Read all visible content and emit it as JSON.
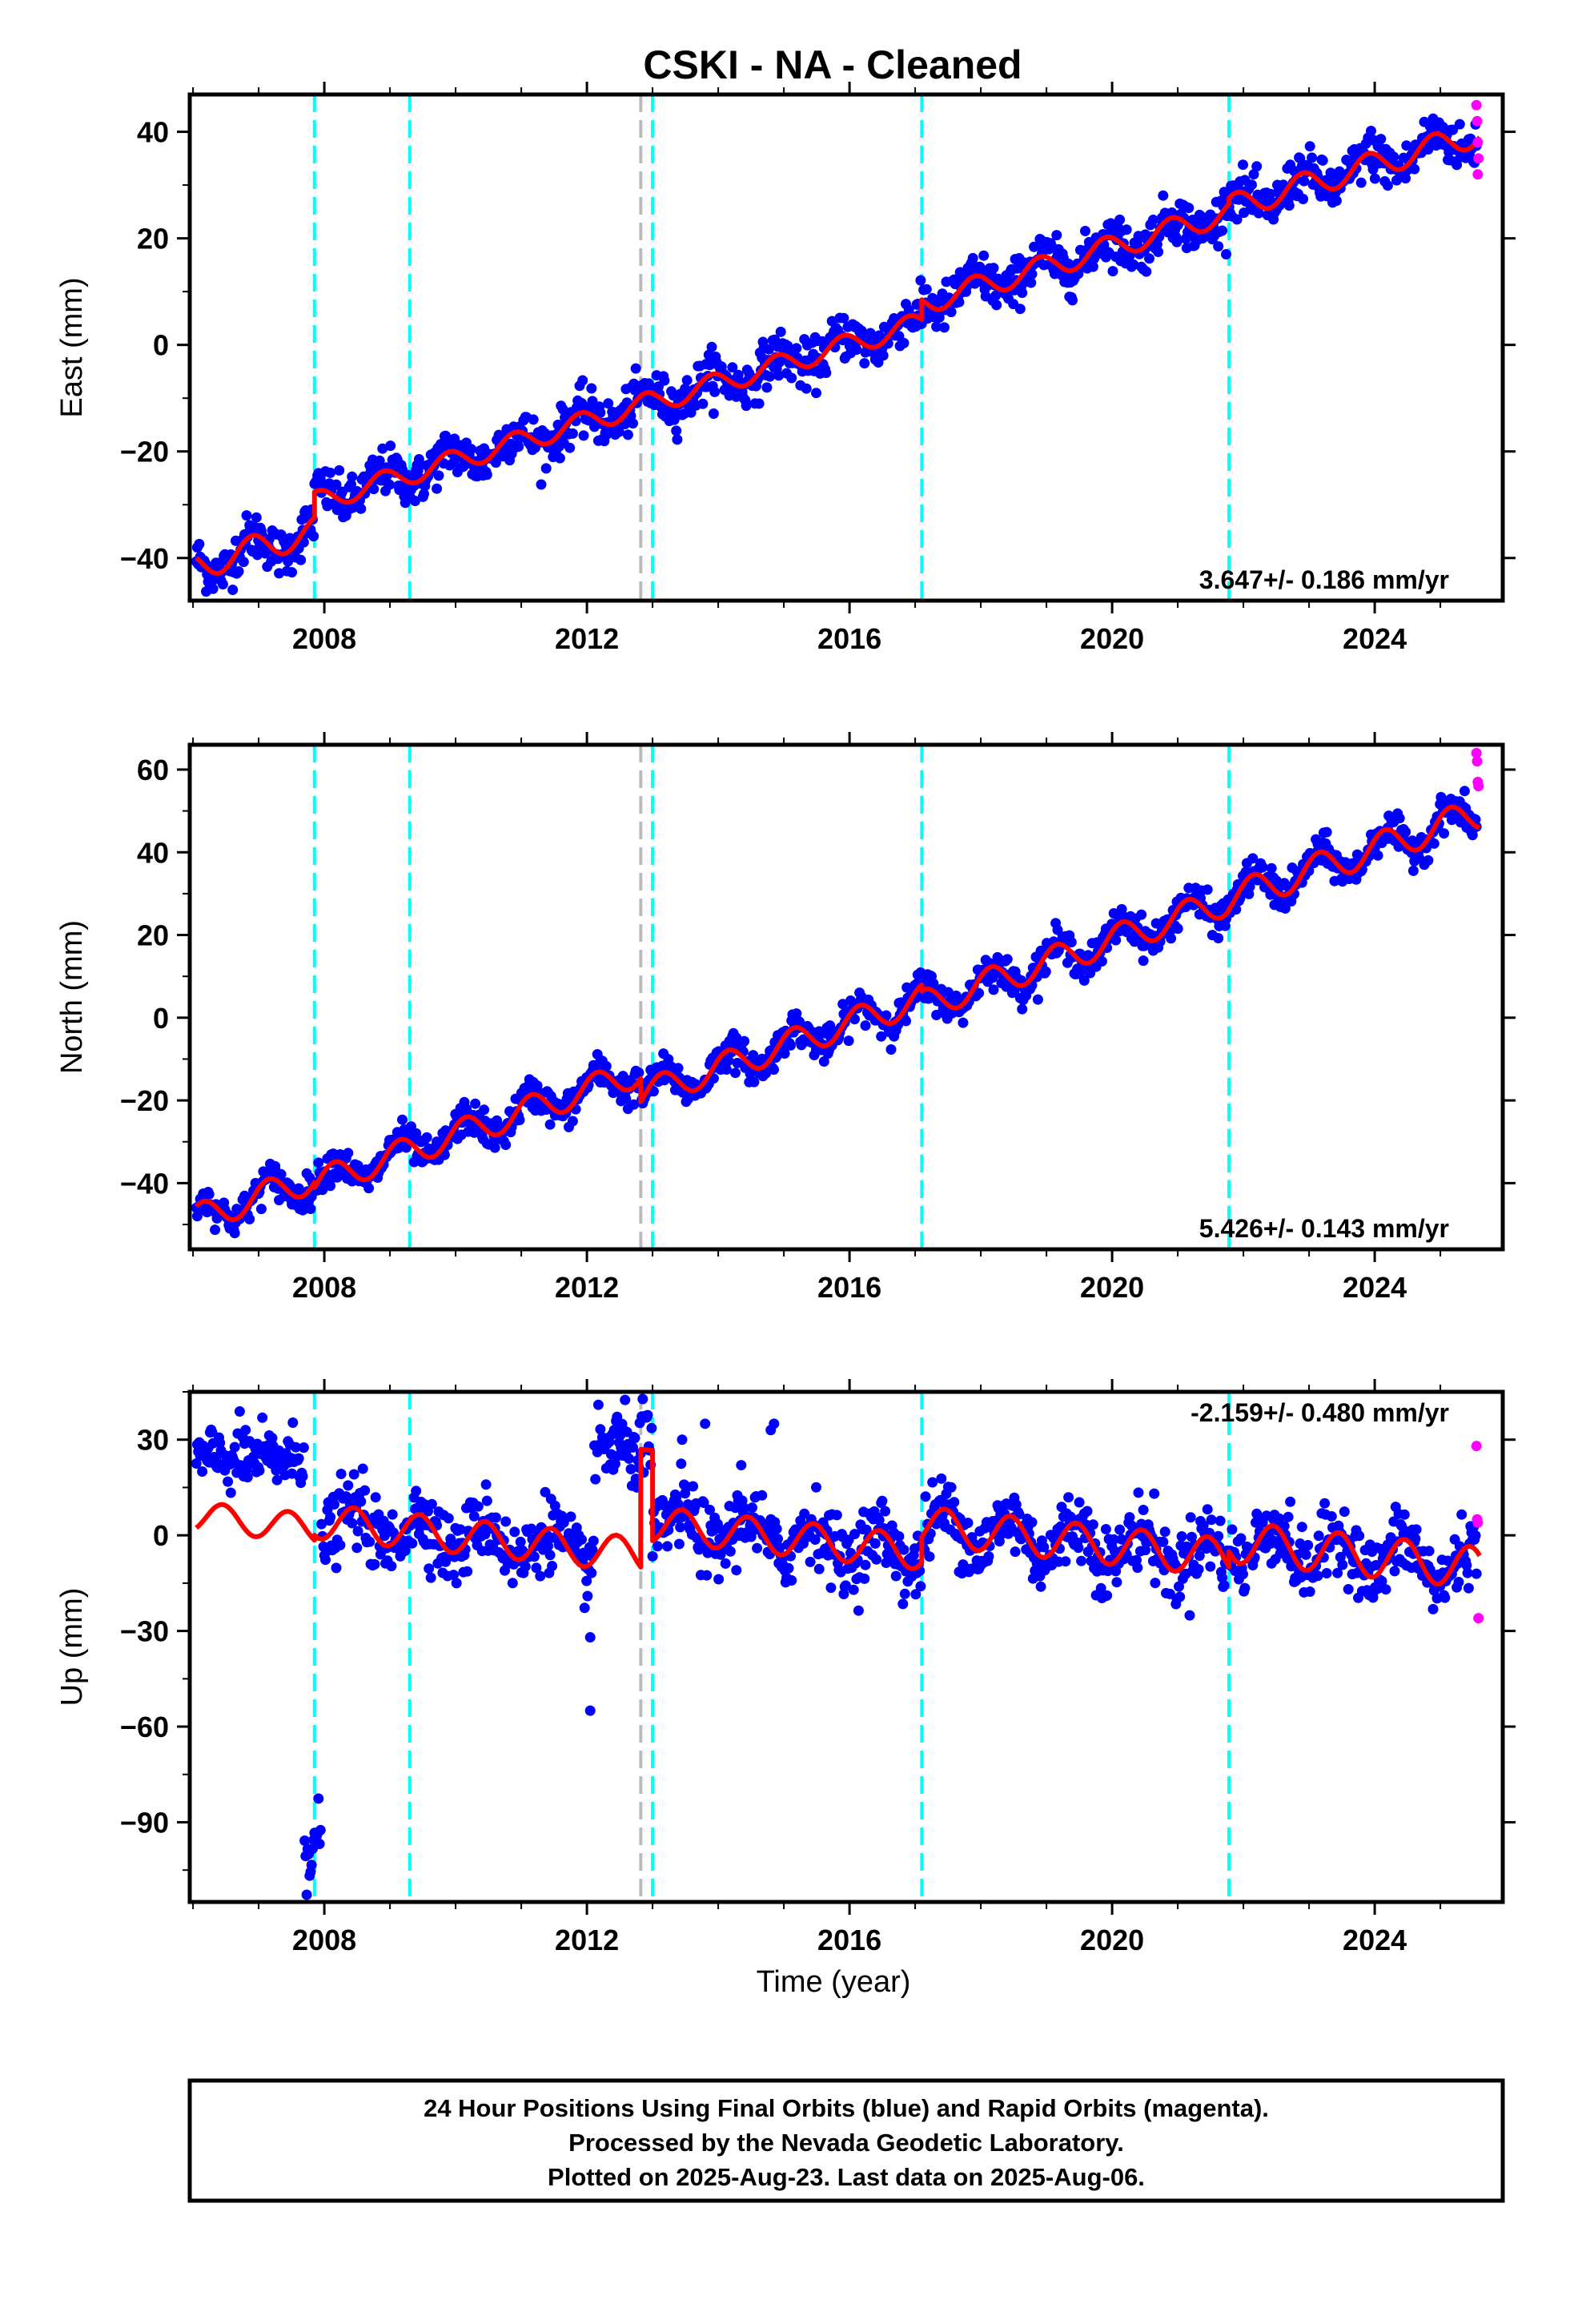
{
  "title": "CSKI  - NA - Cleaned",
  "colors": {
    "final_orbits": "#0000ff",
    "rapid_orbits": "#ff00ff",
    "model": "#ff0000",
    "steps_equipment": "#00ffff",
    "steps_earthquake": "#bbbbbb"
  },
  "xlabel": "Time (year)",
  "footer": {
    "line1": "24 Hour Positions Using Final Orbits (blue) and Rapid Orbits (magenta).",
    "line2": "Processed by the Nevada Geodetic Laboratory.",
    "line3": "Plotted on 2025-Aug-23. Last data on 2025-Aug-06."
  },
  "chart_data": [
    {
      "type": "scatter",
      "component": "East",
      "ylabel": "East (mm)",
      "rate_label": "3.647+/- 0.186 mm/yr",
      "xlim": [
        2005.95,
        2025.95
      ],
      "ylim": [
        -48,
        47
      ],
      "yticks": [
        -40,
        -20,
        0,
        20,
        40
      ],
      "xticks": [
        2008,
        2012,
        2016,
        2020,
        2024
      ],
      "grid": false,
      "steps_equipment": [
        2007.85,
        2009.3,
        2013.0,
        2017.1,
        2021.78
      ],
      "steps_earthquake": [
        2012.82
      ],
      "rapid_points": [
        [
          2025.55,
          45
        ],
        [
          2025.56,
          42
        ],
        [
          2025.57,
          38
        ],
        [
          2025.58,
          35
        ],
        [
          2025.57,
          32
        ]
      ],
      "model_segments": [
        {
          "t0": 2006.05,
          "t1": 2007.85,
          "offset": -41.5,
          "rate": 3.647,
          "amp": 2.6,
          "phase": 0.35
        },
        {
          "t0": 2007.85,
          "t1": 2012.82,
          "offset": -29.5,
          "rate": 3.647,
          "amp": 2.0,
          "phase": 0.35
        },
        {
          "t0": 2012.82,
          "t1": 2013.0,
          "offset": -11.3,
          "rate": 3.647,
          "amp": 2.0,
          "phase": 0.35
        },
        {
          "t0": 2013.0,
          "t1": 2017.1,
          "offset": -10.8,
          "rate": 3.647,
          "amp": 2.0,
          "phase": 0.35
        },
        {
          "t0": 2017.1,
          "t1": 2021.78,
          "offset": 7.8,
          "rate": 3.647,
          "amp": 2.2,
          "phase": 0.35
        },
        {
          "t0": 2021.78,
          "t1": 2025.6,
          "offset": 25.8,
          "rate": 3.647,
          "amp": 2.4,
          "phase": 0.35
        }
      ],
      "scatter_spread": 2.2
    },
    {
      "type": "scatter",
      "component": "North",
      "ylabel": "North (mm)",
      "rate_label": "5.426+/- 0.143 mm/yr",
      "xlim": [
        2005.95,
        2025.95
      ],
      "ylim": [
        -56,
        66
      ],
      "yticks": [
        -40,
        -20,
        0,
        20,
        40,
        60
      ],
      "xticks": [
        2008,
        2012,
        2016,
        2020,
        2024
      ],
      "grid": false,
      "steps_equipment": [
        2007.85,
        2009.3,
        2013.0,
        2017.1,
        2021.78
      ],
      "steps_earthquake": [
        2012.82
      ],
      "rapid_points": [
        [
          2025.55,
          64
        ],
        [
          2025.56,
          62
        ],
        [
          2025.57,
          57
        ],
        [
          2025.58,
          56
        ]
      ],
      "model_segments": [
        {
          "t0": 2006.05,
          "t1": 2007.85,
          "offset": -48.5,
          "rate": 5.426,
          "amp": 3.5,
          "phase": 0.1
        },
        {
          "t0": 2007.85,
          "t1": 2012.82,
          "offset": -40.0,
          "rate": 5.426,
          "amp": 3.5,
          "phase": 0.1
        },
        {
          "t0": 2012.82,
          "t1": 2017.1,
          "offset": -18.6,
          "rate": 5.426,
          "amp": 3.5,
          "phase": 0.1
        },
        {
          "t0": 2017.1,
          "t1": 2021.78,
          "offset": 3.0,
          "rate": 5.426,
          "amp": 3.6,
          "phase": 0.1
        },
        {
          "t0": 2021.78,
          "t1": 2025.6,
          "offset": 28.8,
          "rate": 5.426,
          "amp": 3.8,
          "phase": 0.1
        }
      ],
      "scatter_spread": 2.0
    },
    {
      "type": "scatter",
      "component": "Up",
      "ylabel": "Up (mm)",
      "rate_label": "-2.159+/- 0.480 mm/yr",
      "xlim": [
        2005.95,
        2025.95
      ],
      "ylim": [
        -115,
        45
      ],
      "yticks": [
        -90,
        -60,
        -30,
        0,
        30
      ],
      "xticks": [
        2008,
        2012,
        2016,
        2020,
        2024
      ],
      "grid": false,
      "steps_equipment": [
        2007.85,
        2009.3,
        2013.0,
        2017.1,
        2021.78
      ],
      "steps_earthquake": [
        2012.82
      ],
      "rapid_points": [
        [
          2025.55,
          28
        ],
        [
          2025.56,
          5
        ],
        [
          2025.57,
          4
        ],
        [
          2025.58,
          -26
        ]
      ],
      "model_segments": [
        {
          "t0": 2006.05,
          "t1": 2007.85,
          "offset": 6.0,
          "rate": -2.159,
          "amp": 4.5,
          "phase": 0.8
        },
        {
          "t0": 2007.85,
          "t1": 2012.82,
          "offset": 4.5,
          "rate": -2.159,
          "amp": 5.5,
          "phase": 0.8
        },
        {
          "t0": 2012.82,
          "t1": 2013.0,
          "offset": 27.0,
          "rate": -2.159,
          "amp": 0.0,
          "phase": 0.8
        },
        {
          "t0": 2013.0,
          "t1": 2017.1,
          "offset": 3.5,
          "rate": -2.159,
          "amp": 5.5,
          "phase": 0.8
        },
        {
          "t0": 2017.1,
          "t1": 2021.78,
          "offset": 3.0,
          "rate": -2.159,
          "amp": 6.0,
          "phase": 0.8
        },
        {
          "t0": 2021.78,
          "t1": 2025.6,
          "offset": -2.0,
          "rate": -2.159,
          "amp": 6.5,
          "phase": 0.8
        }
      ],
      "scatter_spread": 5.5,
      "clusters": [
        {
          "t0": 2006.05,
          "t1": 2007.7,
          "center": 24,
          "spread": 5
        },
        {
          "t0": 2012.1,
          "t1": 2012.95,
          "center": 28,
          "spread": 7
        },
        {
          "t0": 2007.7,
          "t1": 2007.95,
          "center": -97,
          "spread": 7
        }
      ],
      "outliers": [
        [
          2012.05,
          -32
        ],
        [
          2012.05,
          -55
        ],
        [
          2013.45,
          30
        ],
        [
          2013.8,
          35
        ],
        [
          2014.35,
          22
        ],
        [
          2014.8,
          33
        ],
        [
          2014.85,
          35
        ]
      ]
    }
  ]
}
